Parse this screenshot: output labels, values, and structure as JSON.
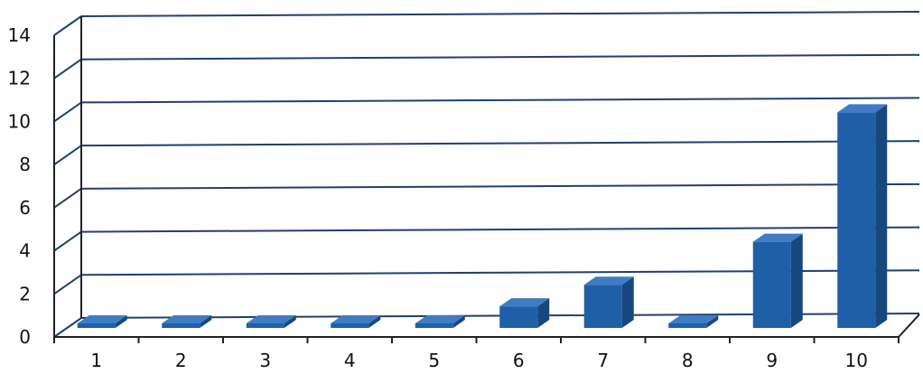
{
  "chart_data": {
    "type": "bar",
    "style": "3d-column",
    "categories": [
      "1",
      "2",
      "3",
      "4",
      "5",
      "6",
      "7",
      "8",
      "9",
      "10"
    ],
    "values": [
      0,
      0,
      0,
      0,
      0,
      1,
      2,
      0,
      4,
      10
    ],
    "title": "",
    "xlabel": "",
    "ylabel": "",
    "ylim": [
      0,
      14
    ],
    "yticks": [
      "0",
      "2",
      "4",
      "6",
      "8",
      "10",
      "12",
      "14"
    ],
    "grid": true,
    "legend": "none",
    "colors": {
      "bar_front": "#1f5fa8",
      "bar_side": "#17477f",
      "bar_top": "#3f7cc6",
      "grid": "#1f3f73",
      "axis": "#222222"
    }
  }
}
